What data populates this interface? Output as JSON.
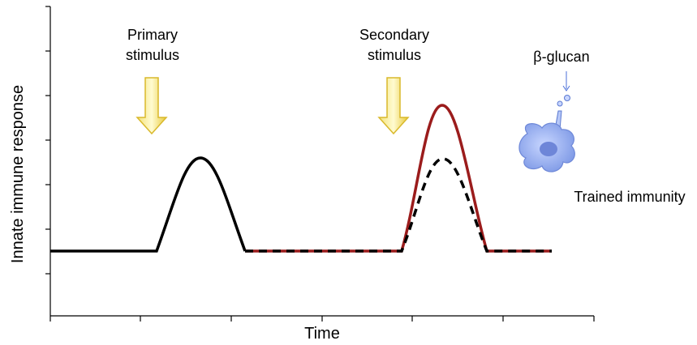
{
  "axes": {
    "y_label": "Innate immune response",
    "x_label": "Time"
  },
  "annotations": {
    "primary_stimulus": [
      "Primary",
      "stimulus"
    ],
    "secondary_stimulus": [
      "Secondary",
      "stimulus"
    ],
    "beta_glucan": "β-glucan",
    "trained_immunity": "Trained immunity"
  }
}
